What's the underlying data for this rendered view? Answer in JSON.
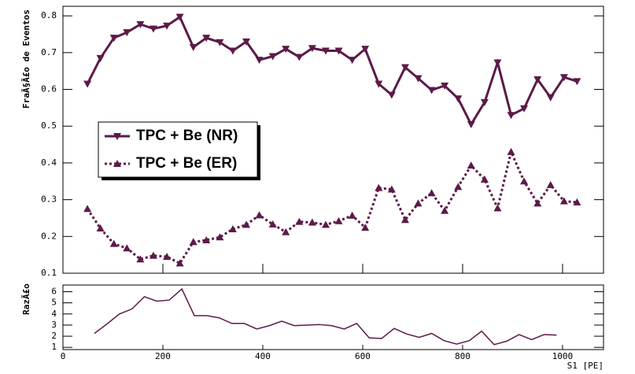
{
  "chart_data": [
    {
      "type": "line",
      "y_label": "FraÃ§Ã£o de Eventos",
      "xlim": [
        0,
        1082
      ],
      "ylim": [
        0.1,
        0.826
      ],
      "yticks": [
        0.1,
        0.2,
        0.3,
        0.4,
        0.5,
        0.6,
        0.7,
        0.8
      ],
      "legend": "left",
      "grid": false,
      "x": [
        49,
        75,
        102,
        128,
        155,
        181,
        208,
        234,
        261,
        287,
        314,
        340,
        367,
        393,
        420,
        446,
        473,
        499,
        526,
        552,
        579,
        605,
        632,
        658,
        685,
        711,
        738,
        764,
        791,
        817,
        844,
        870,
        897,
        923,
        950,
        976,
        1003,
        1029
      ],
      "series": [
        {
          "name": "TPC + Be (NR)",
          "color": "#5c1a48",
          "style": "solid",
          "marker": "triangle-down",
          "values": [
            0.615,
            0.685,
            0.74,
            0.755,
            0.777,
            0.765,
            0.773,
            0.797,
            0.715,
            0.74,
            0.728,
            0.705,
            0.73,
            0.68,
            0.69,
            0.71,
            0.688,
            0.712,
            0.705,
            0.705,
            0.68,
            0.71,
            0.615,
            0.585,
            0.66,
            0.63,
            0.598,
            0.61,
            0.575,
            0.505,
            0.565,
            0.673,
            0.53,
            0.548,
            0.627,
            0.578,
            0.633,
            0.622
          ]
        },
        {
          "name": "TPC + Be (ER)",
          "color": "#5c1a48",
          "style": "dotted",
          "marker": "triangle-up",
          "values": [
            0.275,
            0.222,
            0.18,
            0.168,
            0.138,
            0.148,
            0.145,
            0.127,
            0.185,
            0.19,
            0.198,
            0.22,
            0.232,
            0.258,
            0.233,
            0.212,
            0.24,
            0.238,
            0.232,
            0.242,
            0.257,
            0.224,
            0.332,
            0.328,
            0.245,
            0.29,
            0.318,
            0.27,
            0.335,
            0.393,
            0.355,
            0.277,
            0.43,
            0.35,
            0.29,
            0.34,
            0.296,
            0.293
          ]
        }
      ]
    },
    {
      "type": "line",
      "y_label": "RazÃ£o",
      "x_label": "S1 [PE]",
      "xlim": [
        0,
        1082
      ],
      "ylim": [
        0.8,
        6.6
      ],
      "yticks": [
        1,
        2,
        3,
        4,
        5,
        6
      ],
      "xticks": [
        0,
        200,
        400,
        600,
        800,
        1000
      ],
      "x": [
        63,
        88,
        113,
        138,
        163,
        188,
        213,
        238,
        263,
        288,
        313,
        338,
        363,
        388,
        413,
        438,
        463,
        488,
        513,
        538,
        563,
        588,
        613,
        638,
        663,
        688,
        713,
        738,
        763,
        788,
        813,
        838,
        863,
        888,
        913,
        938,
        963,
        988
      ],
      "series": [
        {
          "color": "#5c1a48",
          "style": "solid",
          "values": [
            2.25,
            3.1,
            4.0,
            4.45,
            5.55,
            5.15,
            5.25,
            6.25,
            3.85,
            3.85,
            3.65,
            3.15,
            3.15,
            2.65,
            2.95,
            3.35,
            2.95,
            3.0,
            3.05,
            2.95,
            2.65,
            3.15,
            1.85,
            1.8,
            2.7,
            2.2,
            1.9,
            2.25,
            1.6,
            1.3,
            1.6,
            2.45,
            1.25,
            1.55,
            2.15,
            1.7,
            2.15,
            2.1
          ]
        }
      ]
    }
  ]
}
